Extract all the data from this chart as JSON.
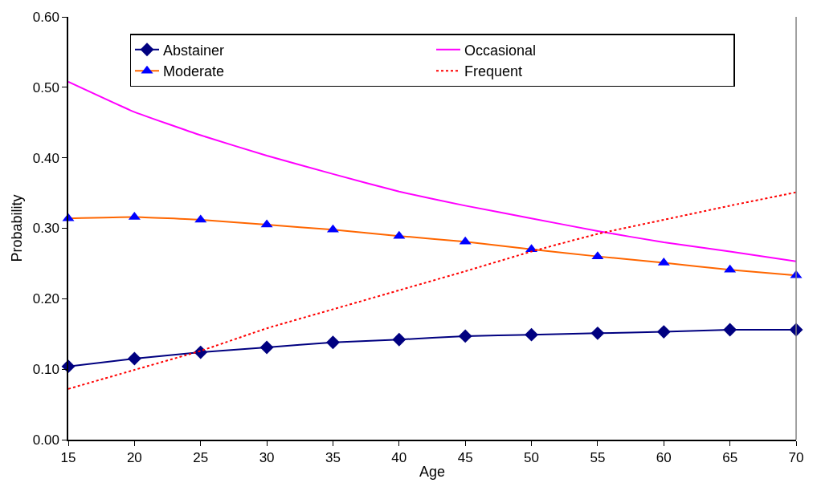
{
  "chart_data": {
    "type": "line",
    "xlabel": "Age",
    "ylabel": "Probability",
    "x": [
      15,
      20,
      25,
      30,
      35,
      40,
      45,
      50,
      55,
      60,
      65,
      70
    ],
    "xlim": [
      15,
      70
    ],
    "xticks": [
      15,
      20,
      25,
      30,
      35,
      40,
      45,
      50,
      55,
      60,
      65,
      70
    ],
    "ylim": [
      0,
      0.6
    ],
    "yticks": [
      {
        "value": 0,
        "label": "0.00"
      },
      {
        "value": 0.1,
        "label": "0.10"
      },
      {
        "value": 0.2,
        "label": "0.20"
      },
      {
        "value": 0.3,
        "label": "0.30"
      },
      {
        "value": 0.4,
        "label": "0.40"
      },
      {
        "value": 0.5,
        "label": "0.50"
      },
      {
        "value": 0.6,
        "label": "0.60"
      }
    ],
    "grid": false,
    "legend": "top",
    "series": [
      {
        "name": "Abstainer",
        "color": "#000080",
        "marker": "diamond",
        "line_style": "solid",
        "values": [
          0.104,
          0.115,
          0.124,
          0.131,
          0.138,
          0.142,
          0.147,
          0.149,
          0.151,
          0.153,
          0.156,
          0.156
        ]
      },
      {
        "name": "Occasional",
        "color": "#ff00ff",
        "marker": "none",
        "line_style": "solid",
        "values": [
          0.508,
          0.465,
          0.432,
          0.403,
          0.377,
          0.352,
          0.332,
          0.314,
          0.296,
          0.28,
          0.267,
          0.253
        ]
      },
      {
        "name": "Moderate",
        "color": "#ff6600",
        "marker": "triangle",
        "colors": [
          "#0000ff",
          "#0000ff",
          "#0000ff",
          "#0000ff",
          "#0000ff",
          "#0000ff",
          "#0000ff",
          "#0000ff",
          "#0000ff",
          "#0000ff",
          "#0000ff",
          "#0000ff"
        ],
        "line_style": "solid",
        "values": [
          0.314,
          0.316,
          0.312,
          0.305,
          0.298,
          0.289,
          0.281,
          0.27,
          0.26,
          0.251,
          0.241,
          0.233
        ]
      },
      {
        "name": "Frequent",
        "color": "#ff0000",
        "marker": "none",
        "line_style": "dotted",
        "values": [
          0.072,
          0.099,
          0.126,
          0.158,
          0.185,
          0.212,
          0.239,
          0.267,
          0.292,
          0.312,
          0.332,
          0.351
        ]
      }
    ]
  }
}
